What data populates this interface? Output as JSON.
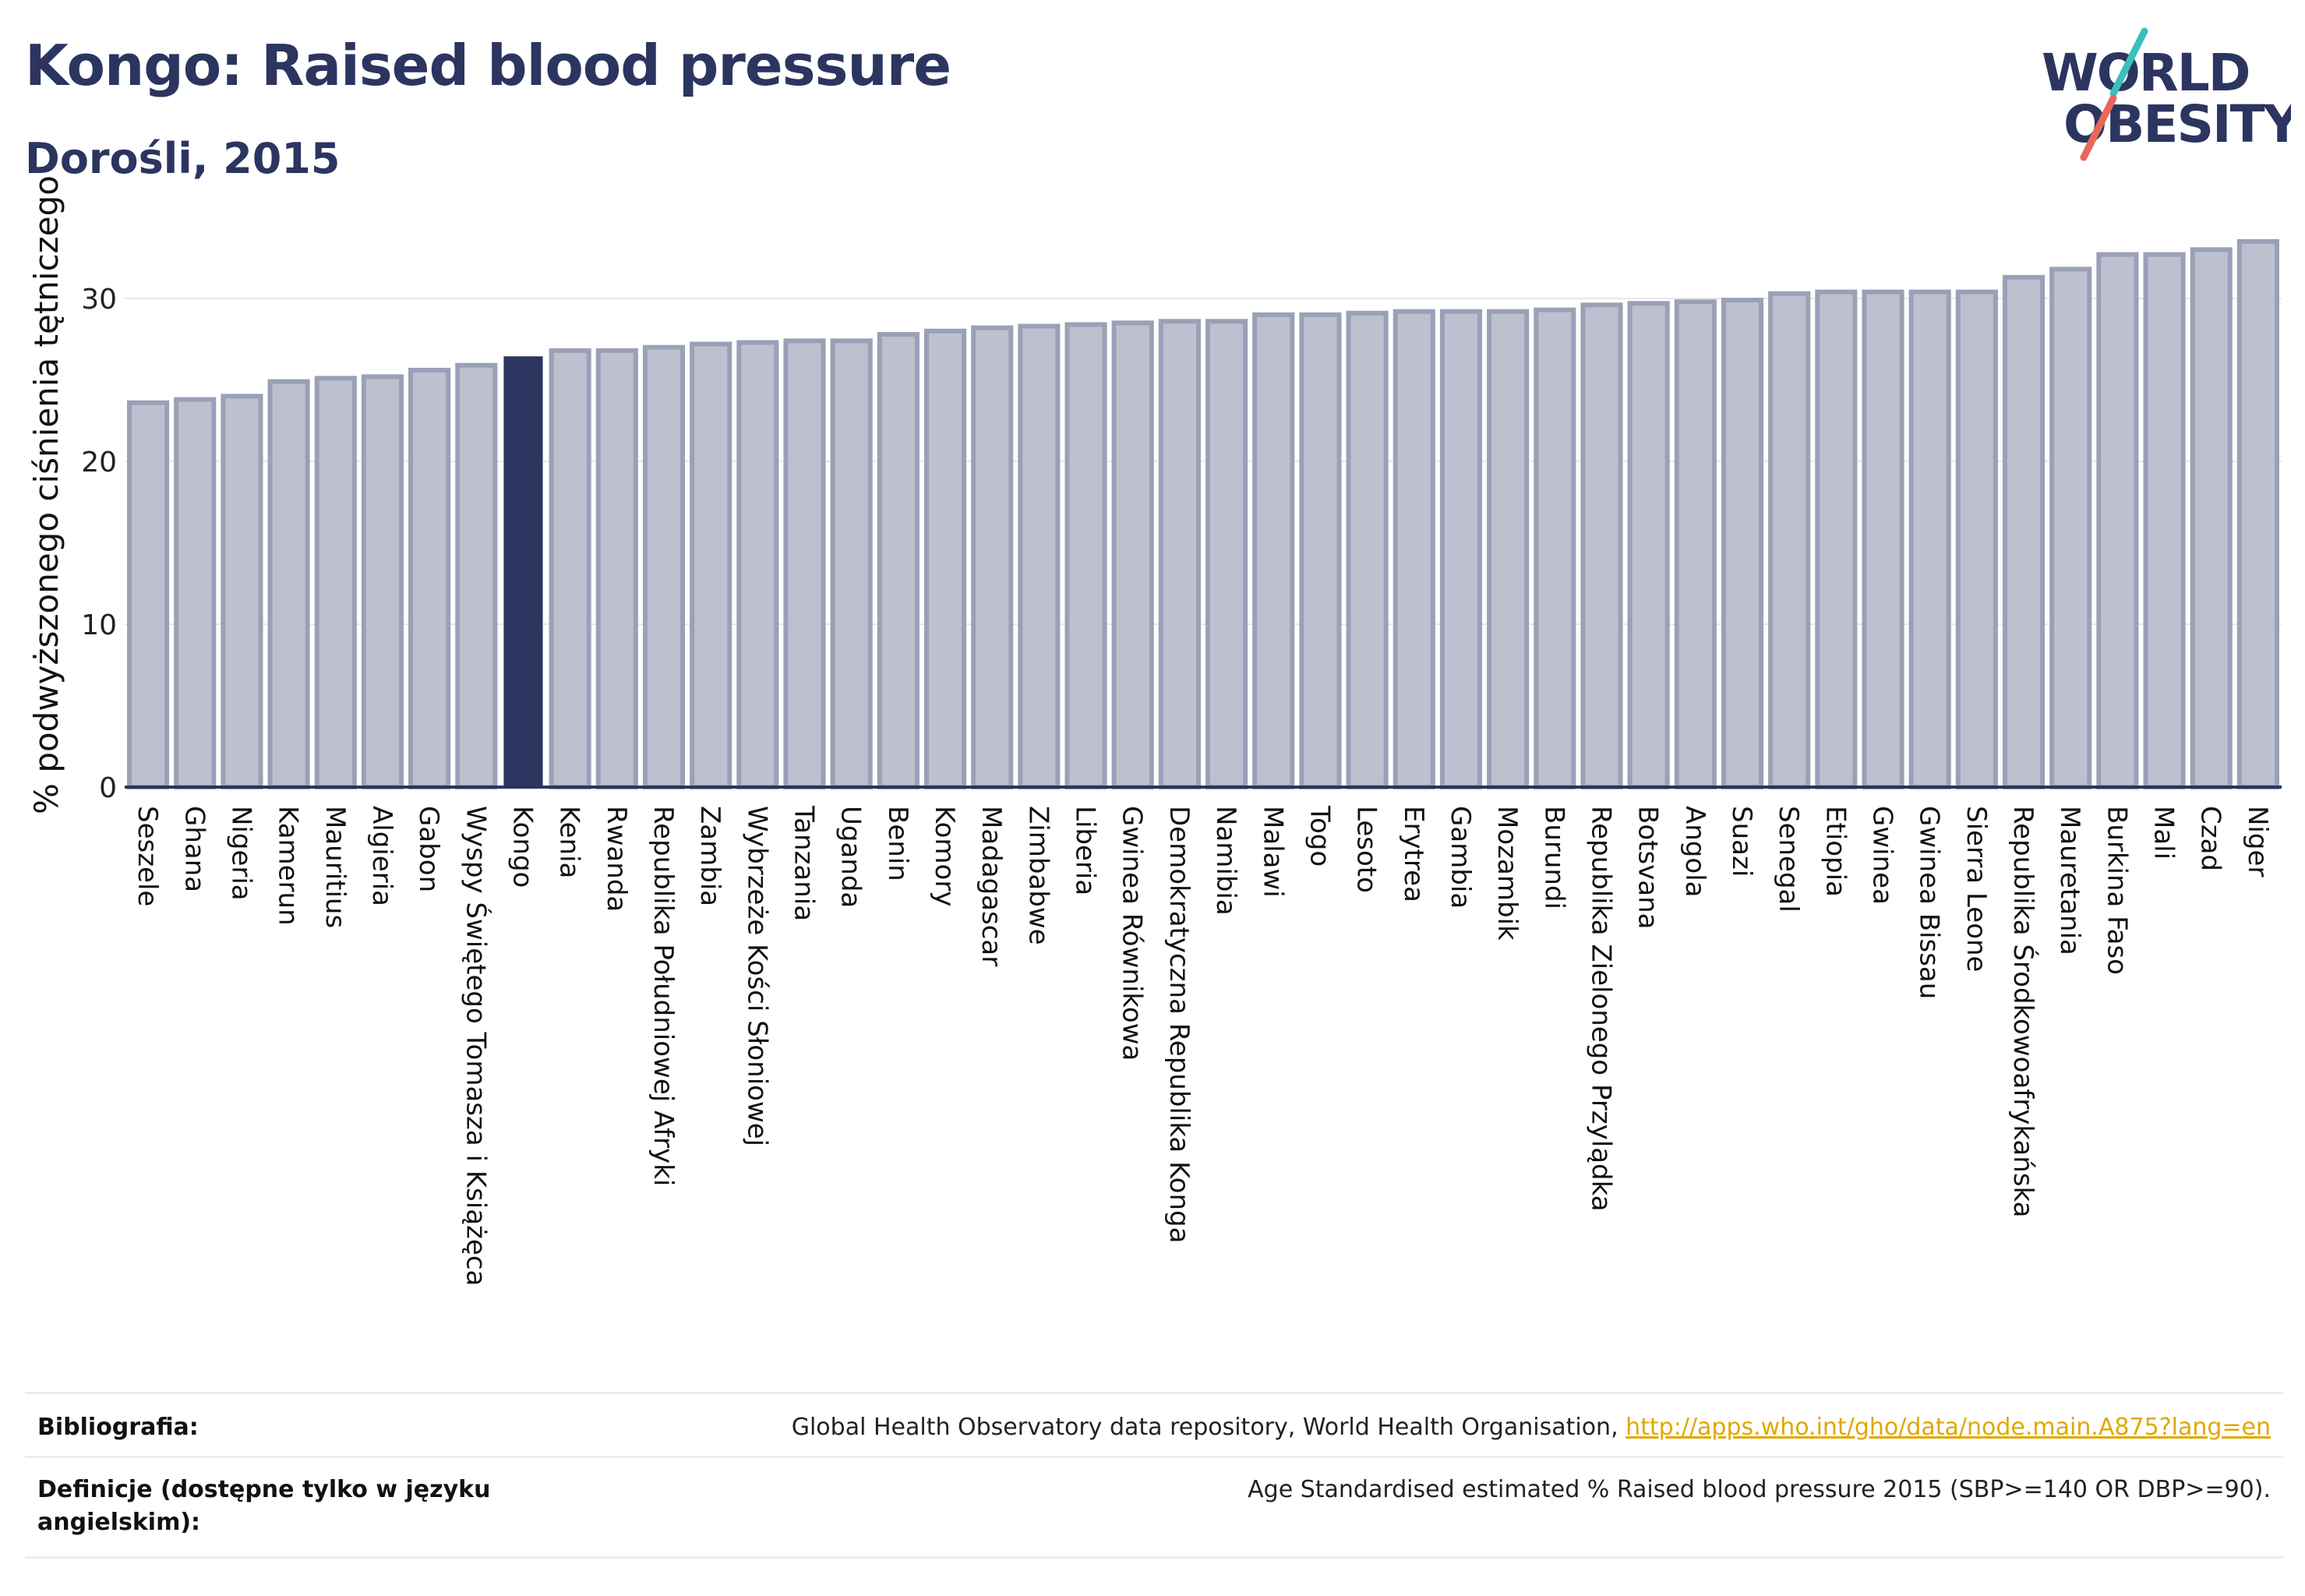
{
  "header": {
    "title": "Kongo: Raised blood pressure",
    "subtitle": "Dorośli, 2015"
  },
  "logo": {
    "line1": "WORLD",
    "line2": "OBESITY"
  },
  "colors": {
    "highlight": "#2b3560",
    "bar_fill": "#bcc0cf",
    "bar_stroke": "#9aa0b6",
    "grid": "#e6e6ea",
    "logo_slash_teal": "#3bbfbf",
    "logo_slash_red": "#e8675a",
    "link": "#e0a800"
  },
  "chart_data": {
    "type": "bar",
    "ylabel": "% podwyższonego ciśnienia tętniczego",
    "ylim": [
      0,
      35
    ],
    "yticks": [
      0,
      10,
      20,
      30
    ],
    "grid": true,
    "highlight": "Kongo",
    "categories": [
      "Seszele",
      "Ghana",
      "Nigeria",
      "Kamerun",
      "Mauritius",
      "Algieria",
      "Gabon",
      "Wyspy Świętego Tomasza i Książęca",
      "Kongo",
      "Kenia",
      "Rwanda",
      "Republika Południowej Afryki",
      "Zambia",
      "Wybrzeże Kości Słoniowej",
      "Tanzania",
      "Uganda",
      "Benin",
      "Komory",
      "Madagascar",
      "Zimbabwe",
      "Liberia",
      "Gwinea Równikowa",
      "Demokratyczna Republika Konga",
      "Namibia",
      "Malawi",
      "Togo",
      "Lesoto",
      "Erytrea",
      "Gambia",
      "Mozambik",
      "Burundi",
      "Republika Zielonego Przylądka",
      "Botsvana",
      "Angola",
      "Suazi",
      "Senegal",
      "Etiopia",
      "Gwinea",
      "Gwinea Bissau",
      "Sierra Leone",
      "Republika Środkowoafrykańska",
      "Mauretania",
      "Burkina Faso",
      "Mali",
      "Czad",
      "Niger"
    ],
    "values": [
      23.6,
      23.8,
      24.0,
      24.9,
      25.1,
      25.2,
      25.6,
      25.9,
      26.4,
      26.8,
      26.8,
      27.0,
      27.2,
      27.3,
      27.4,
      27.4,
      27.8,
      28.0,
      28.2,
      28.3,
      28.4,
      28.5,
      28.6,
      28.6,
      29.0,
      29.0,
      29.1,
      29.2,
      29.2,
      29.2,
      29.3,
      29.6,
      29.7,
      29.8,
      29.9,
      30.3,
      30.4,
      30.4,
      30.4,
      30.4,
      31.3,
      31.8,
      32.7,
      32.7,
      33.0,
      33.5
    ]
  },
  "footer": {
    "bibliography_label": "Bibliografia:",
    "bibliography_text": "Global Health Observatory data repository, World Health Organisation, ",
    "bibliography_link": "http://apps.who.int/gho/data/node.main.A875?lang=en",
    "definition_label": "Definicje (dostępne tylko w języku angielskim):",
    "definition_text": "Age Standardised estimated % Raised blood pressure 2015 (SBP>=140 OR DBP>=90)."
  }
}
